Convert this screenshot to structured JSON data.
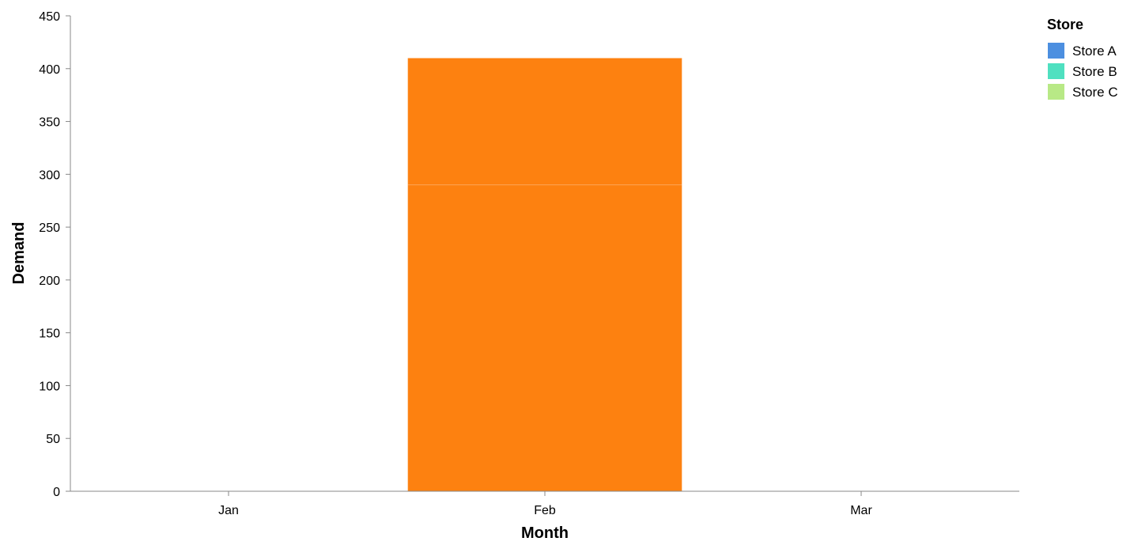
{
  "chart_data": {
    "type": "bar",
    "stacked": true,
    "categories": [
      "Jan",
      "Feb",
      "Mar"
    ],
    "xlabel": "Month",
    "ylabel": "Demand",
    "ylim": [
      0,
      450
    ],
    "yticks": [
      0,
      50,
      100,
      150,
      200,
      250,
      300,
      350,
      400,
      450
    ],
    "grid": false,
    "segments": [
      {
        "category": "Feb",
        "value": 290,
        "color": "#fd8110"
      },
      {
        "category": "Feb",
        "value": 120,
        "color": "#fd8110"
      }
    ],
    "legend": {
      "title": "Store",
      "position": "top-right",
      "items": [
        {
          "label": "Store A",
          "color": "#4c8fe0"
        },
        {
          "label": "Store B",
          "color": "#4fe0c0"
        },
        {
          "label": "Store C",
          "color": "#b8e986"
        }
      ]
    }
  }
}
